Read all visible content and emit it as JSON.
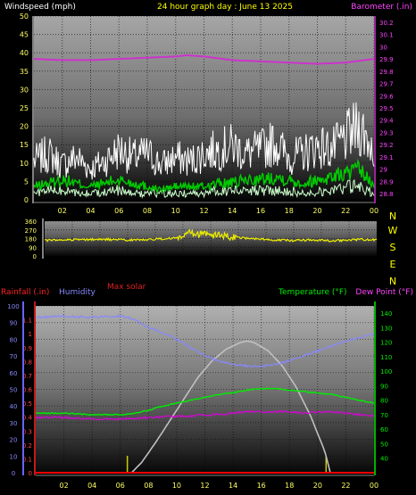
{
  "chart_data": [
    {
      "type": "line",
      "labels": {
        "windspeed": "Windspeed (mph)",
        "title": "24 hour graph day : June 13 2025",
        "barometer": "Barometer (.in)"
      },
      "x_ticks": [
        "02",
        "04",
        "06",
        "08",
        "10",
        "12",
        "14",
        "16",
        "18",
        "20",
        "22",
        "00"
      ],
      "left_axis": {
        "ticks": [
          "0",
          "5",
          "10",
          "15",
          "20",
          "25",
          "30",
          "35",
          "40",
          "45",
          "50"
        ],
        "ylim": [
          0,
          50
        ]
      },
      "right_axis": {
        "ticks": [
          "28.8",
          "28.9",
          "29",
          "29.1",
          "29.2",
          "29.3",
          "29.4",
          "29.5",
          "29.6",
          "29.7",
          "29.8",
          "29.9",
          "30",
          "30.1",
          "30.2"
        ],
        "ylim": [
          28.75,
          30.25
        ]
      },
      "colors": {
        "barometer": "#cc33cc",
        "gust": "#ffffff",
        "average": "#00cc00",
        "speed": "#ccffcc"
      },
      "series": [
        {
          "name": "Barometer (.in)",
          "axis": "right",
          "x_hours": [
            0,
            2,
            4,
            6,
            8,
            10,
            10.8,
            12,
            14,
            16,
            18,
            20,
            22,
            24
          ],
          "values": [
            29.9,
            29.89,
            29.89,
            29.9,
            29.91,
            29.92,
            29.93,
            29.92,
            29.89,
            29.88,
            29.87,
            29.86,
            29.87,
            29.9
          ]
        },
        {
          "name": "gust",
          "axis": "left",
          "x_hours": [
            0,
            1,
            2,
            3,
            4,
            5,
            6,
            7,
            8,
            9,
            10,
            11,
            12,
            13,
            14,
            15,
            16,
            17,
            18,
            19,
            20,
            21,
            22,
            23,
            24
          ],
          "values": [
            10,
            12,
            9,
            11,
            8,
            10,
            13,
            11,
            12,
            9,
            11,
            10,
            12,
            13,
            14,
            12,
            13,
            15,
            11,
            12,
            14,
            13,
            16,
            19,
            13
          ]
        },
        {
          "name": "average",
          "axis": "left",
          "x_hours": [
            0,
            1,
            2,
            3,
            4,
            5,
            6,
            7,
            8,
            9,
            10,
            11,
            12,
            13,
            14,
            15,
            16,
            17,
            18,
            19,
            20,
            21,
            22,
            23,
            24
          ],
          "values": [
            4,
            5,
            6,
            5,
            4,
            5,
            6,
            5,
            4,
            3,
            4,
            4,
            4,
            5,
            5,
            6,
            6,
            7,
            6,
            5,
            6,
            7,
            8,
            9,
            4
          ]
        },
        {
          "name": "speed",
          "axis": "left",
          "x_hours": [
            0,
            1,
            2,
            3,
            4,
            5,
            6,
            7,
            8,
            9,
            10,
            11,
            12,
            13,
            14,
            15,
            16,
            17,
            18,
            19,
            20,
            21,
            22,
            23,
            24
          ],
          "values": [
            2,
            3,
            3,
            2,
            2,
            3,
            3,
            2,
            2,
            2,
            2,
            2,
            2,
            3,
            3,
            3,
            3,
            3,
            3,
            2,
            3,
            3,
            4,
            4,
            2
          ]
        }
      ]
    },
    {
      "type": "line",
      "labels": {
        "compass": [
          "N",
          "W",
          "S",
          "E",
          "N"
        ]
      },
      "left_axis": {
        "ticks": [
          "360",
          "270",
          "180",
          "90",
          "0"
        ],
        "ylim": [
          0,
          360
        ]
      },
      "colors": {
        "direction": "#eeee00"
      },
      "series": [
        {
          "name": "direction",
          "x_hours": [
            0,
            1,
            2,
            3,
            4,
            5,
            6,
            7,
            8,
            9,
            10,
            10.5,
            11,
            11.5,
            12,
            12.5,
            13,
            14,
            15,
            16,
            17,
            18,
            19,
            20,
            21,
            22,
            23,
            24
          ],
          "values": [
            160,
            165,
            170,
            168,
            172,
            170,
            165,
            168,
            175,
            180,
            195,
            240,
            210,
            250,
            200,
            225,
            205,
            190,
            180,
            170,
            165,
            160,
            165,
            162,
            158,
            165,
            170,
            168
          ]
        }
      ]
    },
    {
      "type": "line",
      "labels": {
        "rainfall": "Rainfall (.in)",
        "humidity": "Humidity",
        "solar": "Max solar",
        "temperature": "Temperature (°F)",
        "dewpoint": "Dew Point (°F)"
      },
      "x_ticks": [
        "02",
        "04",
        "06",
        "08",
        "10",
        "12",
        "14",
        "16",
        "18",
        "20",
        "22",
        "00"
      ],
      "rain_axis": {
        "ticks": [
          "0",
          "0.1",
          "0.2",
          "0.3",
          "0.4",
          "0.5",
          "0.6",
          "0.7",
          "0.8",
          "0.9",
          "1",
          "1.1"
        ],
        "ylim": [
          0,
          1.2
        ]
      },
      "humidity_axis": {
        "ticks": [
          "0",
          "10",
          "20",
          "30",
          "40",
          "50",
          "60",
          "70",
          "80",
          "90",
          "100"
        ],
        "ylim": [
          0,
          100
        ]
      },
      "temp_axis": {
        "ticks": [
          "40",
          "50",
          "60",
          "70",
          "80",
          "90",
          "100",
          "110",
          "120",
          "130",
          "140"
        ],
        "ylim": [
          30,
          145
        ]
      },
      "colors": {
        "rainfall": "#ff0000",
        "humidity": "#8888ff",
        "solar": "#c0c0c0",
        "temperature": "#00ee00",
        "dewpoint": "#dd00dd",
        "solar_marker": "#cccc00"
      },
      "solar_markers": [
        6.5,
        20.6
      ],
      "series": [
        {
          "name": "Humidity",
          "axis": "humidity",
          "x_hours": [
            0,
            2,
            4,
            6,
            7,
            8,
            9,
            10,
            11,
            12,
            13,
            14,
            15,
            16,
            17,
            18,
            19,
            20,
            21,
            22,
            23,
            24
          ],
          "values": [
            93,
            94,
            93,
            94,
            92,
            87,
            84,
            80,
            75,
            70,
            67,
            65,
            64,
            64,
            65,
            67,
            70,
            73,
            76,
            79,
            81,
            83
          ]
        },
        {
          "name": "Max solar",
          "axis": "humidity",
          "x_hours": [
            6.8,
            7.5,
            8.5,
            9.5,
            10.5,
            11.5,
            12.5,
            13.5,
            14.5,
            15,
            15.5,
            16.5,
            17.5,
            18.5,
            19.5,
            20.5,
            20.9
          ],
          "values": [
            0,
            6,
            18,
            31,
            44,
            57,
            67,
            74,
            78,
            79,
            78,
            73,
            64,
            51,
            34,
            13,
            0
          ]
        },
        {
          "name": "Temperature (°F)",
          "axis": "temp",
          "x_hours": [
            0,
            2,
            4,
            6,
            7,
            8,
            9,
            10,
            11,
            12,
            13,
            14,
            15,
            16,
            17,
            18,
            19,
            20,
            21,
            22,
            23,
            24
          ],
          "values": [
            71,
            71,
            70,
            70,
            71,
            73,
            76,
            78,
            80,
            82,
            84,
            85,
            87,
            88,
            88,
            87,
            86,
            85,
            84,
            82,
            80,
            78
          ]
        },
        {
          "name": "Dew Point (°F)",
          "axis": "temp",
          "x_hours": [
            0,
            2,
            4,
            6,
            8,
            10,
            11,
            12,
            13,
            14,
            15,
            16,
            17,
            18,
            19,
            20,
            21,
            22,
            23,
            24
          ],
          "values": [
            68,
            68,
            67,
            67,
            68,
            69,
            69,
            70,
            70,
            71,
            72,
            72,
            72,
            72,
            71,
            72,
            72,
            71,
            70,
            69
          ]
        },
        {
          "name": "Rainfall (.in)",
          "axis": "rain",
          "x_hours": [
            0,
            24
          ],
          "values": [
            0,
            0
          ]
        }
      ]
    }
  ]
}
